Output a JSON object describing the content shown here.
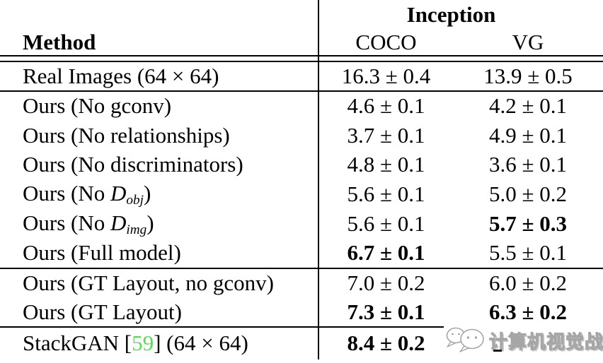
{
  "table": {
    "header": {
      "group_label": "Inception",
      "method_label": "Method",
      "columns": [
        "COCO",
        "VG"
      ]
    },
    "rows": [
      {
        "name": "real-images",
        "method": [
          {
            "t": "Real Images (64 × 64)"
          }
        ],
        "coco": "16.3 ± 0.4",
        "coco_bold": false,
        "vg": "13.9 ± 0.5",
        "vg_bold": false,
        "rule_below": true
      },
      {
        "name": "ours-no-gconv",
        "method": [
          {
            "t": "Ours (No gconv)"
          }
        ],
        "coco": "4.6 ± 0.1",
        "coco_bold": false,
        "vg": "4.2 ± 0.1",
        "vg_bold": false,
        "rule_below": false
      },
      {
        "name": "ours-no-relationships",
        "method": [
          {
            "t": "Ours (No relationships)"
          }
        ],
        "coco": "3.7 ± 0.1",
        "coco_bold": false,
        "vg": "4.9 ± 0.1",
        "vg_bold": false,
        "rule_below": false
      },
      {
        "name": "ours-no-discriminators",
        "method": [
          {
            "t": "Ours (No discriminators)"
          }
        ],
        "coco": "4.8 ± 0.1",
        "coco_bold": false,
        "vg": "3.6 ± 0.1",
        "vg_bold": false,
        "rule_below": false
      },
      {
        "name": "ours-no-d-obj",
        "method": [
          {
            "t": "Ours (No "
          },
          {
            "t": "D",
            "style": "mi"
          },
          {
            "t": "obj",
            "style": "msub"
          },
          {
            "t": ")"
          }
        ],
        "coco": "5.6 ± 0.1",
        "coco_bold": false,
        "vg": "5.0 ± 0.2",
        "vg_bold": false,
        "rule_below": false
      },
      {
        "name": "ours-no-d-img",
        "method": [
          {
            "t": "Ours (No "
          },
          {
            "t": "D",
            "style": "mi"
          },
          {
            "t": "img",
            "style": "msub"
          },
          {
            "t": ")"
          }
        ],
        "coco": "5.6 ± 0.1",
        "coco_bold": false,
        "vg": "5.7 ± 0.3",
        "vg_bold": true,
        "rule_below": false
      },
      {
        "name": "ours-full-model",
        "method": [
          {
            "t": "Ours (Full model)"
          }
        ],
        "coco": "6.7 ± 0.1",
        "coco_bold": true,
        "vg": "5.5 ± 0.1",
        "vg_bold": false,
        "rule_below": true
      },
      {
        "name": "ours-gt-layout-no-gconv",
        "method": [
          {
            "t": "Ours (GT Layout, no gconv)"
          }
        ],
        "coco": "7.0 ± 0.2",
        "coco_bold": false,
        "vg": "6.0 ± 0.2",
        "vg_bold": false,
        "rule_below": false
      },
      {
        "name": "ours-gt-layout",
        "method": [
          {
            "t": "Ours (GT Layout)"
          }
        ],
        "coco": "7.3 ± 0.1",
        "coco_bold": true,
        "vg": "6.3 ± 0.2",
        "vg_bold": true,
        "rule_below": true
      },
      {
        "name": "stackgan",
        "method": [
          {
            "t": "StackGAN ["
          },
          {
            "t": "59",
            "style": "cite"
          },
          {
            "t": "] (64 × 64)"
          }
        ],
        "coco": "8.4 ± 0.2",
        "coco_bold": true,
        "vg": "",
        "vg_bold": false,
        "rule_below": false
      }
    ]
  },
  "watermark": {
    "text": "计算机视觉战队",
    "icon": "wechat-chat-bubbles-icon",
    "color": "#a6a6a6"
  },
  "colors": {
    "citation_green": "#55dd55",
    "rule_black": "#000000",
    "text_black": "#000000",
    "background": "#ffffff"
  }
}
